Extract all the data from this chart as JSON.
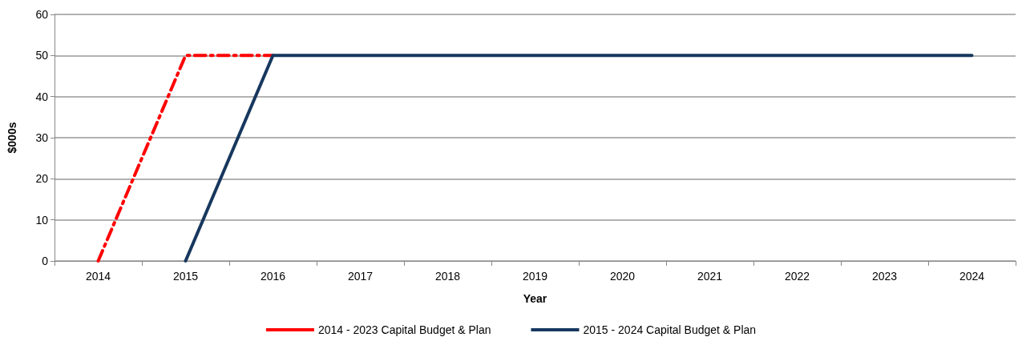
{
  "chart_data": {
    "type": "line",
    "xlabel": "Year",
    "ylabel": "$000s",
    "categories": [
      "2014",
      "2015",
      "2016",
      "2017",
      "2018",
      "2019",
      "2020",
      "2021",
      "2022",
      "2023",
      "2024"
    ],
    "series": [
      {
        "name": "2014 - 2023 Capital Budget & Plan",
        "color": "#ff0000",
        "line_style": "dashed",
        "values": [
          0,
          50,
          50,
          null,
          null,
          null,
          null,
          null,
          null,
          null,
          null
        ]
      },
      {
        "name": "2015 - 2024 Capital Budget & Plan",
        "color": "#17375e",
        "line_style": "solid",
        "values": [
          null,
          0,
          50,
          50,
          50,
          50,
          50,
          50,
          50,
          50,
          50
        ]
      }
    ],
    "ylim": [
      0,
      60
    ],
    "yticks": [
      0,
      10,
      20,
      30,
      40,
      50,
      60
    ],
    "grid": "y",
    "legend": "bottom",
    "marker": "none"
  }
}
